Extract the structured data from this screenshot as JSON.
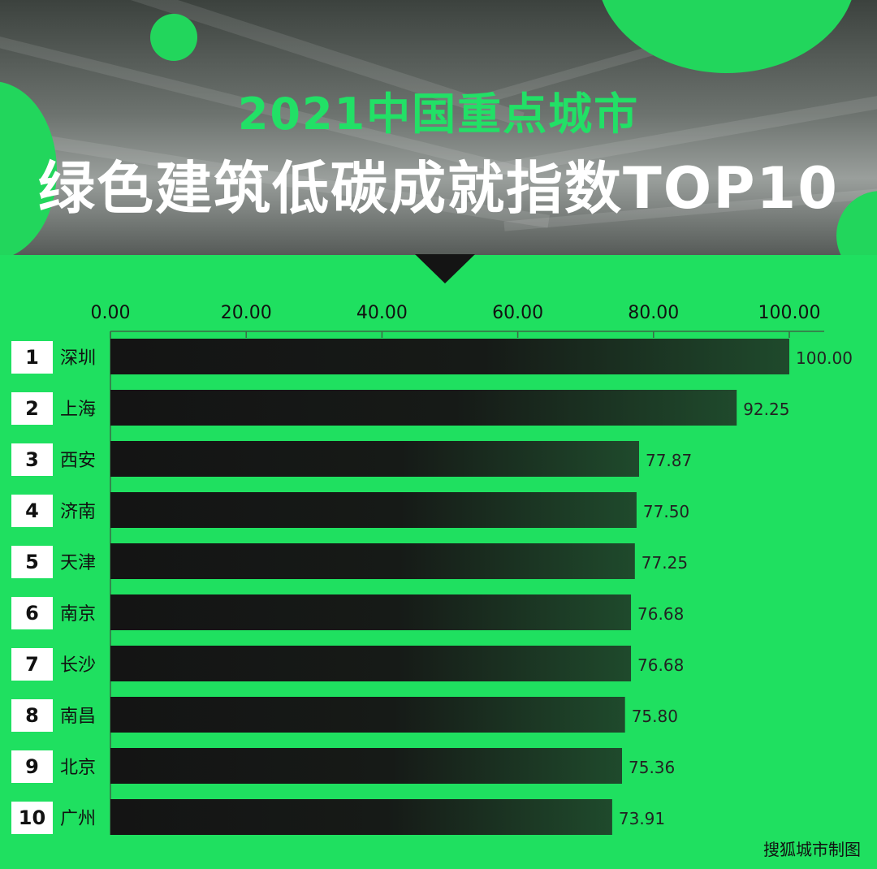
{
  "header": {
    "title_line1": "2021中国重点城市",
    "title_line2": "绿色建筑低碳成就指数TOP10"
  },
  "colors": {
    "background": "#1fe060",
    "accent_title": "#22e066",
    "bar_dark": "#141414"
  },
  "chart_data": {
    "type": "bar",
    "orientation": "horizontal",
    "categories": [
      "深圳",
      "上海",
      "西安",
      "济南",
      "天津",
      "南京",
      "长沙",
      "南昌",
      "北京",
      "广州"
    ],
    "ranks": [
      "1",
      "2",
      "3",
      "4",
      "5",
      "6",
      "7",
      "8",
      "9",
      "10"
    ],
    "values": [
      100.0,
      92.25,
      77.87,
      77.5,
      77.25,
      76.68,
      76.68,
      75.8,
      75.36,
      73.91
    ],
    "value_labels": [
      "100.00",
      "92.25",
      "77.87",
      "77.50",
      "77.25",
      "76.68",
      "76.68",
      "75.80",
      "75.36",
      "73.91"
    ],
    "xlim": [
      0,
      100
    ],
    "x_ticks": [
      "0.00",
      "20.00",
      "40.00",
      "60.00",
      "80.00",
      "100.00"
    ],
    "x_axis_position": "top",
    "grid": false,
    "legend": "none"
  },
  "credit": "搜狐城市制图"
}
